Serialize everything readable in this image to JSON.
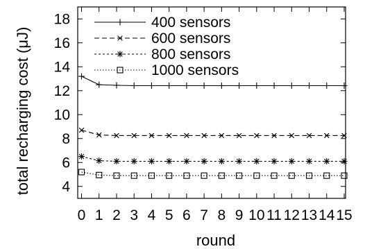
{
  "chart_data": {
    "type": "line",
    "title": "",
    "xlabel": "round",
    "ylabel": "total recharging cost (μJ)",
    "x": [
      0,
      1,
      2,
      3,
      4,
      5,
      6,
      7,
      8,
      9,
      10,
      11,
      12,
      13,
      14,
      15
    ],
    "x_tick_labels": [
      "0",
      "1",
      "2",
      "3",
      "4",
      "5",
      "6",
      "7",
      "8",
      "9",
      "10",
      "11",
      "12",
      "13",
      "14",
      "15"
    ],
    "y_ticks": [
      4,
      6,
      8,
      10,
      12,
      14,
      16,
      18
    ],
    "y_tick_labels": [
      "4",
      "6",
      "8",
      "10",
      "12",
      "14",
      "16",
      "18"
    ],
    "xlim": [
      0,
      15
    ],
    "ylim": [
      3,
      19
    ],
    "grid": false,
    "legend_position": "top-left",
    "series": [
      {
        "name": "400 sensors",
        "marker": "plus",
        "dash": "solid",
        "values": [
          13.2,
          12.5,
          12.45,
          12.42,
          12.42,
          12.42,
          12.42,
          12.42,
          12.42,
          12.42,
          12.42,
          12.42,
          12.42,
          12.42,
          12.42,
          12.42
        ]
      },
      {
        "name": "600 sensors",
        "marker": "cross",
        "dash": "dashed",
        "values": [
          8.7,
          8.3,
          8.25,
          8.25,
          8.25,
          8.25,
          8.25,
          8.25,
          8.25,
          8.25,
          8.25,
          8.25,
          8.25,
          8.25,
          8.25,
          8.25
        ]
      },
      {
        "name": "800 sensors",
        "marker": "asterisk",
        "dash": "short-dashed",
        "values": [
          6.5,
          6.15,
          6.1,
          6.1,
          6.1,
          6.1,
          6.1,
          6.1,
          6.1,
          6.1,
          6.1,
          6.1,
          6.1,
          6.1,
          6.1,
          6.1
        ]
      },
      {
        "name": "1000 sensors",
        "marker": "square",
        "dash": "dotted",
        "values": [
          5.2,
          4.95,
          4.9,
          4.9,
          4.9,
          4.9,
          4.9,
          4.9,
          4.9,
          4.9,
          4.9,
          4.9,
          4.9,
          4.9,
          4.9,
          4.9
        ]
      }
    ]
  }
}
